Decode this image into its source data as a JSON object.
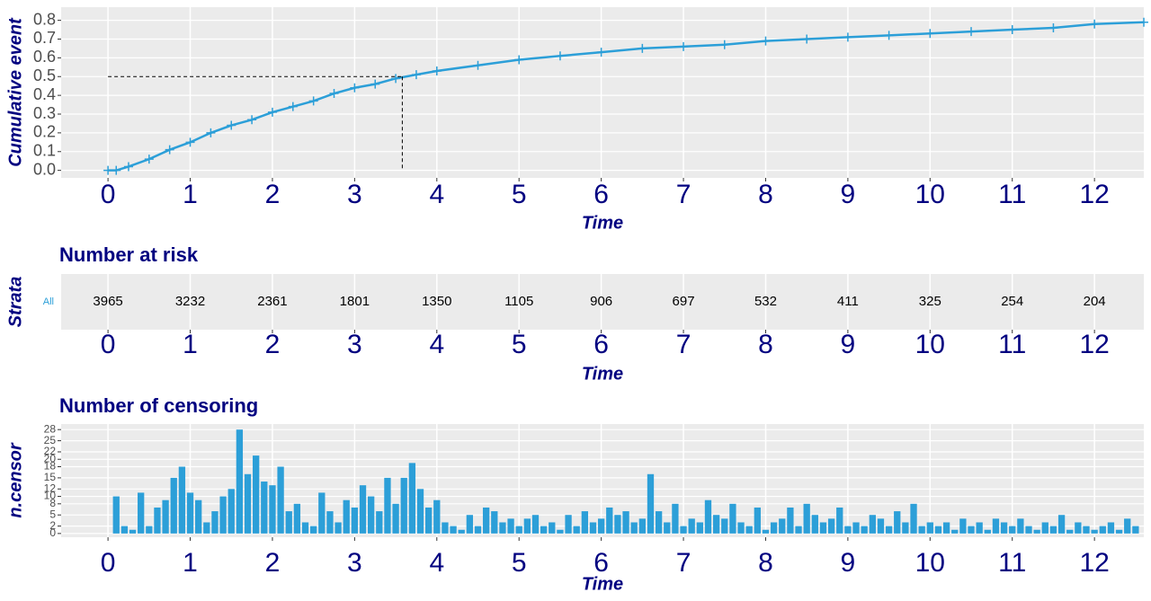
{
  "chart_data": [
    {
      "type": "line",
      "x_label": "Time",
      "y_label": "Cumulative event",
      "x": [
        0,
        0.1,
        0.25,
        0.5,
        0.75,
        1,
        1.25,
        1.5,
        1.75,
        2,
        2.25,
        2.5,
        2.75,
        3,
        3.25,
        3.5,
        3.75,
        4,
        4.5,
        5,
        5.5,
        6,
        6.5,
        7,
        7.5,
        8,
        8.5,
        9,
        9.5,
        10,
        10.5,
        11,
        11.5,
        12,
        12.6
      ],
      "series": [
        {
          "color": "#2c9fd8",
          "values": [
            0,
            0,
            0.02,
            0.06,
            0.11,
            0.15,
            0.2,
            0.24,
            0.27,
            0.31,
            0.34,
            0.37,
            0.41,
            0.44,
            0.46,
            0.49,
            0.51,
            0.53,
            0.56,
            0.59,
            0.61,
            0.63,
            0.65,
            0.66,
            0.67,
            0.69,
            0.7,
            0.71,
            0.72,
            0.73,
            0.74,
            0.75,
            0.76,
            0.78,
            0.79
          ]
        }
      ],
      "median": {
        "x": 3.58,
        "y": 0.5
      },
      "xlim": [
        -0.57,
        12.6
      ],
      "xticks": [
        0,
        1,
        2,
        3,
        4,
        5,
        6,
        7,
        8,
        9,
        10,
        11,
        12
      ],
      "ylim": [
        -0.04,
        0.87
      ],
      "yticks": [
        {
          "value": 0,
          "label": "0.0"
        },
        0.1,
        0.2,
        0.3,
        0.4,
        0.5,
        0.6,
        0.7,
        0.8
      ],
      "grid": true
    },
    {
      "type": "table",
      "title": "Number at risk",
      "x_label": "Time",
      "y_label": "Strata",
      "categories": [
        0,
        1,
        2,
        3,
        4,
        5,
        6,
        7,
        8,
        9,
        10,
        11,
        12
      ],
      "series": [
        {
          "name": "All",
          "color": "#2c9fd8",
          "values": [
            3965,
            3232,
            2361,
            1801,
            1350,
            1105,
            906,
            697,
            532,
            411,
            325,
            254,
            204
          ]
        }
      ],
      "xlim": [
        -0.57,
        12.6
      ],
      "xticks": [
        0,
        1,
        2,
        3,
        4,
        5,
        6,
        7,
        8,
        9,
        10,
        11,
        12
      ],
      "grid": true
    },
    {
      "type": "bar",
      "title": "Number of censoring",
      "x_label": "Time",
      "y_label": "n.censor",
      "color": "#2c9fd8",
      "x": [
        0.1,
        0.2,
        0.3,
        0.4,
        0.5,
        0.6,
        0.7,
        0.8,
        0.9,
        1.0,
        1.1,
        1.2,
        1.3,
        1.4,
        1.5,
        1.6,
        1.7,
        1.8,
        1.9,
        2.0,
        2.1,
        2.2,
        2.3,
        2.4,
        2.5,
        2.6,
        2.7,
        2.8,
        2.9,
        3.0,
        3.1,
        3.2,
        3.3,
        3.4,
        3.5,
        3.6,
        3.7,
        3.8,
        3.9,
        4.0,
        4.1,
        4.2,
        4.3,
        4.4,
        4.5,
        4.6,
        4.7,
        4.8,
        4.9,
        5.0,
        5.1,
        5.2,
        5.3,
        5.4,
        5.5,
        5.6,
        5.7,
        5.8,
        5.9,
        6.0,
        6.1,
        6.2,
        6.3,
        6.4,
        6.5,
        6.6,
        6.7,
        6.8,
        6.9,
        7.0,
        7.1,
        7.2,
        7.3,
        7.4,
        7.5,
        7.6,
        7.7,
        7.8,
        7.9,
        8.0,
        8.1,
        8.2,
        8.3,
        8.4,
        8.5,
        8.6,
        8.7,
        8.8,
        8.9,
        9.0,
        9.1,
        9.2,
        9.3,
        9.4,
        9.5,
        9.6,
        9.7,
        9.8,
        9.9,
        10.0,
        10.1,
        10.2,
        10.3,
        10.4,
        10.5,
        10.6,
        10.7,
        10.8,
        10.9,
        11.0,
        11.1,
        11.2,
        11.3,
        11.4,
        11.5,
        11.6,
        11.7,
        11.8,
        11.9,
        12.0,
        12.1,
        12.2,
        12.3,
        12.4,
        12.5
      ],
      "values": [
        10,
        2,
        1,
        11,
        2,
        7,
        9,
        15,
        18,
        11,
        9,
        3,
        6,
        10,
        12,
        28,
        16,
        21,
        14,
        13,
        18,
        6,
        8,
        3,
        2,
        11,
        6,
        3,
        9,
        7,
        13,
        10,
        6,
        15,
        8,
        15,
        19,
        12,
        7,
        9,
        3,
        2,
        1,
        5,
        2,
        7,
        6,
        3,
        4,
        2,
        4,
        5,
        2,
        3,
        1,
        5,
        2,
        6,
        3,
        4,
        7,
        5,
        6,
        3,
        4,
        16,
        6,
        3,
        8,
        2,
        4,
        3,
        9,
        5,
        4,
        8,
        3,
        2,
        7,
        1,
        3,
        4,
        7,
        2,
        8,
        5,
        3,
        4,
        7,
        2,
        3,
        2,
        5,
        4,
        2,
        6,
        3,
        8,
        2,
        3,
        2,
        3,
        1,
        4,
        2,
        3,
        1,
        4,
        3,
        2,
        4,
        2,
        1,
        3,
        2,
        5,
        1,
        3,
        2,
        1,
        2,
        3,
        1,
        4,
        2
      ],
      "xlim": [
        -0.57,
        12.6
      ],
      "xticks": [
        0,
        1,
        2,
        3,
        4,
        5,
        6,
        7,
        8,
        9,
        10,
        11,
        12
      ],
      "ylim": [
        -1,
        29.5
      ],
      "yticks": [
        0,
        2,
        5,
        8,
        10,
        12,
        15,
        18,
        20,
        22,
        25,
        28
      ],
      "grid": true
    }
  ]
}
